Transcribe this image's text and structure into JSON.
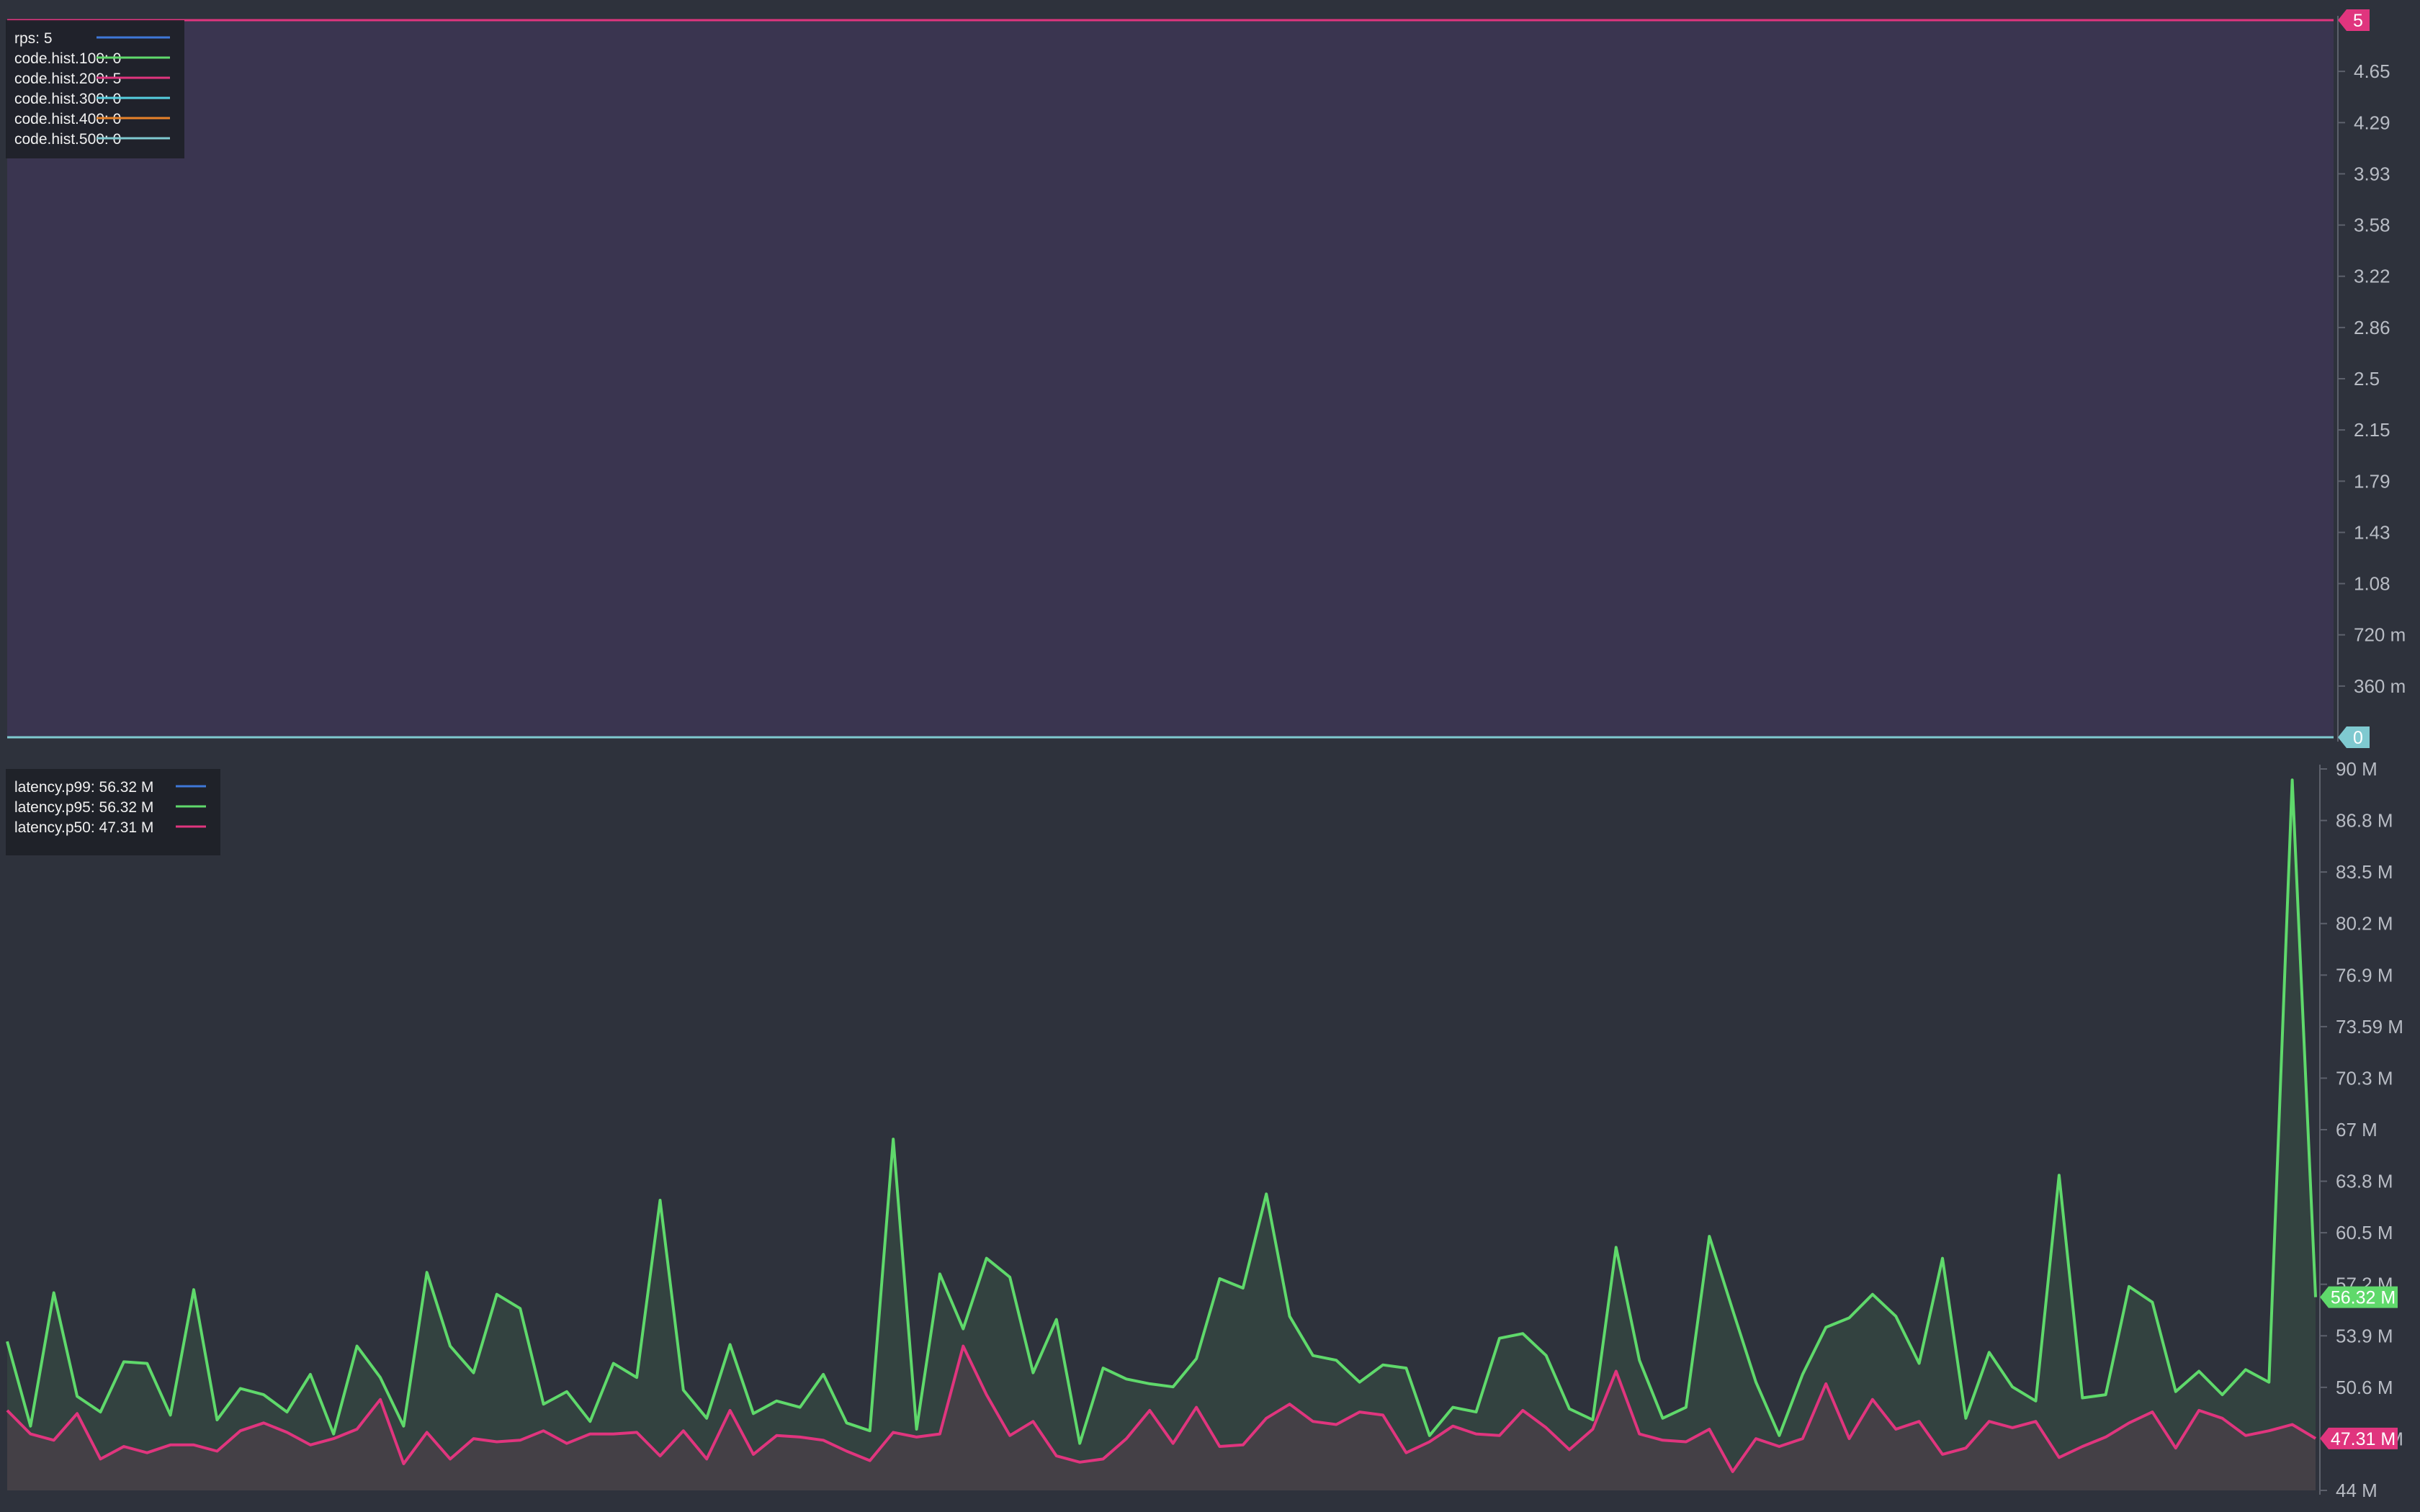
{
  "chart_data": [
    {
      "type": "line",
      "ylim": [
        0,
        5
      ],
      "y_ticks": [
        "0",
        "360 m",
        "720 m",
        "1.08",
        "1.43",
        "1.79",
        "2.15",
        "2.5",
        "2.86",
        "3.22",
        "3.58",
        "3.93",
        "4.29",
        "4.65",
        "5"
      ],
      "legend_position": "top-left",
      "legend": [
        {
          "label": "rps: 5",
          "color": "#3f78d8"
        },
        {
          "label": "code.hist.100: 0",
          "color": "#5fd96b"
        },
        {
          "label": "code.hist.200: 5",
          "color": "#e0357e"
        },
        {
          "label": "code.hist.300: 0",
          "color": "#56cfe0"
        },
        {
          "label": "code.hist.400: 0",
          "color": "#e8822a"
        },
        {
          "label": "code.hist.500: 0",
          "color": "#7fc9d0"
        }
      ],
      "series": [
        {
          "name": "rps",
          "value": 5,
          "color": "#3f78d8"
        },
        {
          "name": "code.hist.100",
          "value": 0,
          "color": "#5fd96b"
        },
        {
          "name": "code.hist.200",
          "value": 5,
          "color": "#e0357e"
        },
        {
          "name": "code.hist.300",
          "value": 0,
          "color": "#56cfe0"
        },
        {
          "name": "code.hist.400",
          "value": 0,
          "color": "#e8822a"
        },
        {
          "name": "code.hist.500",
          "value": 0,
          "color": "#7fc9d0"
        }
      ],
      "badges": [
        {
          "label": "5",
          "value": 5,
          "color": "#e0357e"
        },
        {
          "label": "0",
          "value": 0,
          "color": "#7fc9d0"
        }
      ]
    },
    {
      "type": "area",
      "ylim": [
        44,
        90
      ],
      "y_ticks": [
        "44 M",
        "47.31 M",
        "50.6 M",
        "53.9 M",
        "57.2 M",
        "60.5 M",
        "63.8 M",
        "67 M",
        "70.3 M",
        "73.59 M",
        "76.9 M",
        "80.2 M",
        "83.5 M",
        "86.8 M",
        "90 M"
      ],
      "legend_position": "top-left",
      "legend": [
        {
          "label": "latency.p99: 56.32 M",
          "color": "#3f78d8"
        },
        {
          "label": "latency.p95: 56.32 M",
          "color": "#5fd96b"
        },
        {
          "label": "latency.p50: 47.31 M",
          "color": "#e0357e"
        }
      ],
      "series": [
        {
          "name": "latency.p95",
          "color": "#5fd96b",
          "values": [
            53.5,
            48.1,
            56.6,
            50.0,
            49.0,
            52.2,
            52.1,
            48.8,
            56.8,
            48.5,
            50.5,
            50.1,
            49.0,
            51.4,
            47.6,
            53.2,
            51.2,
            48.1,
            57.9,
            53.2,
            51.5,
            56.5,
            55.6,
            49.5,
            50.3,
            48.4,
            52.1,
            51.2,
            62.5,
            50.4,
            48.6,
            53.3,
            48.9,
            49.7,
            49.3,
            51.4,
            48.3,
            47.8,
            66.4,
            47.9,
            57.8,
            54.3,
            58.8,
            57.6,
            51.5,
            54.9,
            47.0,
            51.8,
            51.1,
            50.8,
            50.6,
            52.4,
            57.5,
            56.9,
            62.9,
            55.1,
            52.6,
            52.3,
            50.9,
            52.0,
            51.8,
            47.5,
            49.3,
            49.0,
            53.7,
            54.0,
            52.6,
            49.2,
            48.5,
            59.5,
            52.3,
            48.6,
            49.3,
            60.2,
            55.5,
            50.9,
            47.5,
            51.4,
            54.4,
            55.0,
            56.5,
            55.1,
            52.1,
            58.8,
            48.6,
            52.8,
            50.6,
            49.7,
            64.1,
            49.9,
            50.1,
            57.0,
            56.0,
            50.3,
            51.6,
            50.1,
            51.7,
            50.9,
            89.3,
            56.32
          ]
        },
        {
          "name": "latency.p50",
          "color": "#e0357e",
          "values": [
            49.1,
            47.6,
            47.2,
            48.9,
            46.0,
            46.8,
            46.4,
            46.9,
            46.9,
            46.5,
            47.8,
            48.3,
            47.7,
            46.9,
            47.3,
            47.9,
            49.8,
            45.7,
            47.7,
            46.0,
            47.3,
            47.1,
            47.2,
            47.8,
            47.0,
            47.6,
            47.6,
            47.7,
            46.2,
            47.8,
            46.0,
            49.1,
            46.3,
            47.5,
            47.4,
            47.2,
            46.5,
            45.9,
            47.7,
            47.4,
            47.6,
            53.2,
            50.1,
            47.5,
            48.4,
            46.2,
            45.8,
            46.0,
            47.3,
            49.1,
            47.0,
            49.3,
            46.8,
            46.9,
            48.6,
            49.5,
            48.4,
            48.2,
            49.0,
            48.8,
            46.4,
            47.1,
            48.1,
            47.6,
            47.5,
            49.1,
            48.0,
            46.6,
            47.9,
            51.6,
            47.6,
            47.2,
            47.1,
            47.9,
            45.2,
            47.3,
            46.8,
            47.3,
            50.8,
            47.3,
            49.8,
            47.9,
            48.4,
            46.3,
            46.7,
            48.4,
            48.0,
            48.4,
            46.1,
            46.8,
            47.4,
            48.3,
            49.0,
            46.7,
            49.1,
            48.6,
            47.5,
            47.8,
            48.2,
            47.31
          ]
        }
      ],
      "badges": [
        {
          "label": "56.32 M",
          "value": 56.32,
          "color": "#5fd96b"
        },
        {
          "label": "47.31 M",
          "value": 47.31,
          "color": "#e0357e"
        }
      ]
    }
  ]
}
